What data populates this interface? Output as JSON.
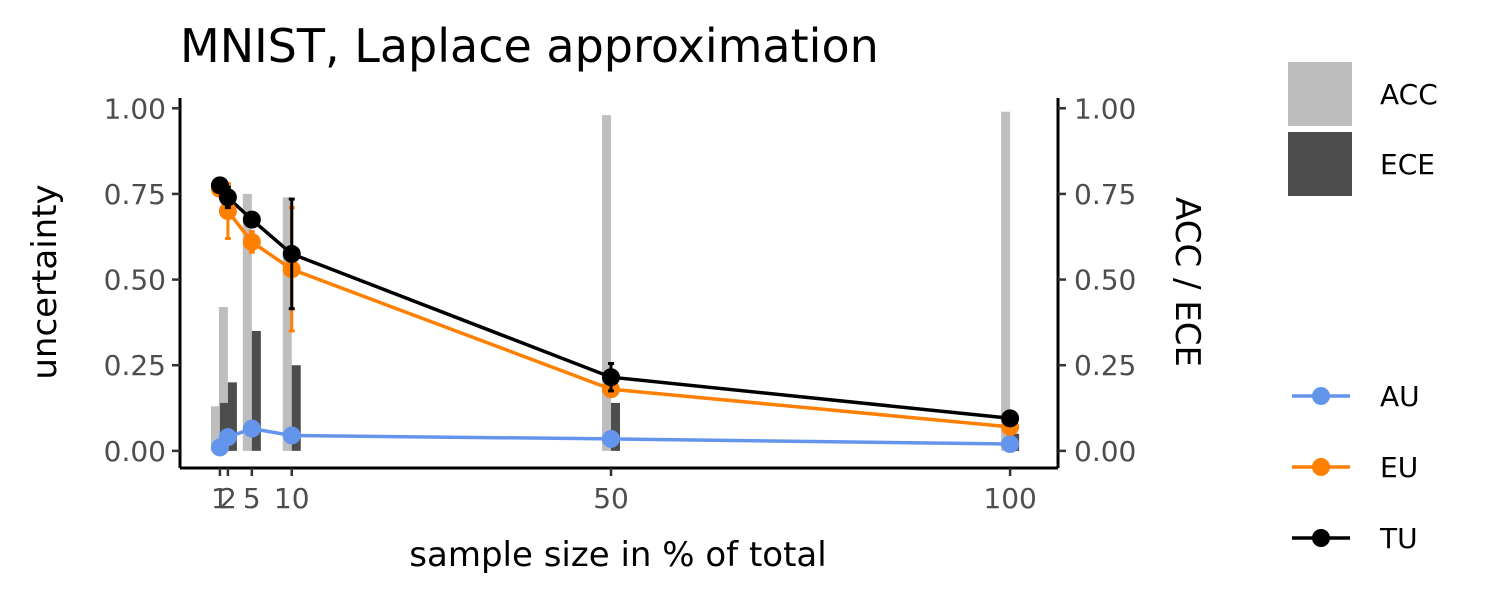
{
  "chart_data": {
    "type": "line",
    "title": "MNIST, Laplace approximation",
    "xlabel": "sample size in % of total",
    "ylabel": "uncertainty",
    "ylabel_right": "ACC / ECE",
    "x": [
      1,
      2,
      5,
      10,
      50,
      100
    ],
    "x_ticks": [
      1,
      2,
      5,
      10,
      50,
      100
    ],
    "x_tick_labels": [
      "1",
      "2",
      "5",
      "10",
      "50",
      "100"
    ],
    "xlim": [
      -4,
      106
    ],
    "ylim": [
      -0.05,
      1.03
    ],
    "y_ticks": [
      0,
      0.25,
      0.5,
      0.75,
      1
    ],
    "y_tick_labels": [
      "0.00",
      "0.25",
      "0.50",
      "0.75",
      "1.00"
    ],
    "grid": false,
    "bars": [
      {
        "name": "ACC",
        "color": "#bebebe",
        "values": [
          0.13,
          0.42,
          0.75,
          0.74,
          0.98,
          0.99
        ]
      },
      {
        "name": "ECE",
        "color": "#4d4d4d",
        "values": [
          0.14,
          0.2,
          0.35,
          0.25,
          0.14,
          0.05
        ]
      }
    ],
    "series": [
      {
        "name": "AU",
        "color": "#6495ED",
        "values": [
          0.01,
          0.04,
          0.065,
          0.045,
          0.035,
          0.02
        ],
        "err": [
          0.005,
          0.01,
          0.01,
          0.005,
          0.005,
          0.005
        ]
      },
      {
        "name": "EU",
        "color": "#FF7F00",
        "values": [
          0.765,
          0.7,
          0.61,
          0.53,
          0.18,
          0.07
        ],
        "err": [
          0.015,
          0.08,
          0.03,
          0.18,
          0.02,
          0.01
        ]
      },
      {
        "name": "TU",
        "color": "#000000",
        "values": [
          0.775,
          0.74,
          0.675,
          0.575,
          0.215,
          0.095
        ],
        "err": [
          0.01,
          0.03,
          0.02,
          0.16,
          0.04,
          0.01
        ]
      }
    ],
    "legend_position": "right"
  }
}
